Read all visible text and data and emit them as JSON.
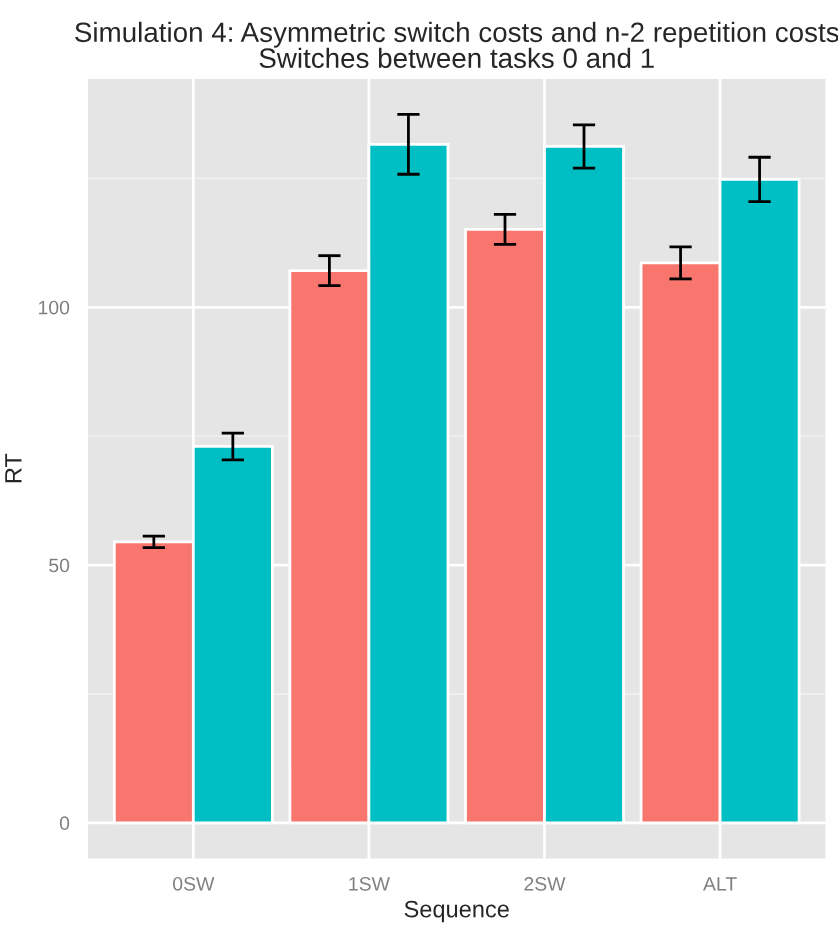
{
  "chart_data": {
    "type": "bar",
    "title": "Simulation 4: Asymmetric switch costs and n-2 repetition costs\nSwitches between tasks 0 and 1",
    "xlabel": "Sequence",
    "ylabel": "RT",
    "categories": [
      "0SW",
      "1SW",
      "2SW",
      "ALT"
    ],
    "series": [
      {
        "color": "#f8766d",
        "values": [
          54.5,
          107.1,
          115.1,
          108.6
        ],
        "errors": [
          1.1,
          2.9,
          2.9,
          3.1
        ]
      },
      {
        "color": "#00bfc4",
        "values": [
          73.0,
          131.6,
          131.2,
          124.8
        ],
        "errors": [
          2.6,
          5.8,
          4.2,
          4.3
        ]
      }
    ],
    "ylim": [
      -6.9,
      144.3
    ],
    "yticks": [
      0,
      50,
      100
    ],
    "grid": true,
    "legend": false
  }
}
